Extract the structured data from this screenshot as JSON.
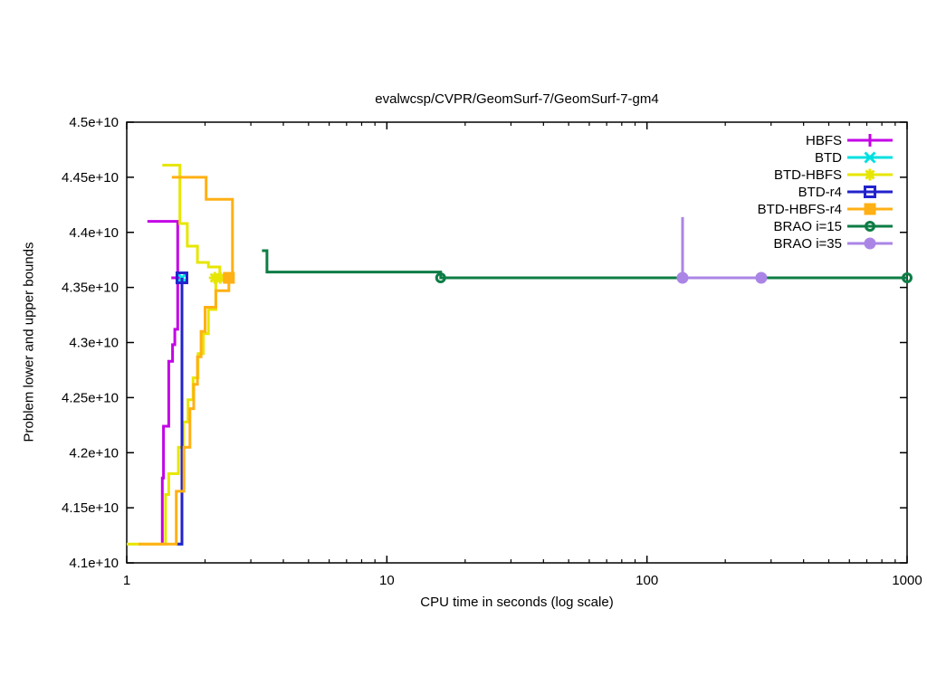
{
  "chart": {
    "title": "evalwcsp/CVPR/GeomSurf-7/GeomSurf-7-gm4",
    "xlabel": "CPU time in seconds (log scale)",
    "ylabel": "Problem lower and upper bounds"
  },
  "chart_data": {
    "type": "line",
    "x_scale": "log",
    "x_range": [
      1,
      1000
    ],
    "y_range": [
      41000000000.0,
      45000000000.0
    ],
    "x_ticks": [
      1,
      10,
      100,
      1000
    ],
    "x_tick_labels": [
      "1",
      "10",
      "100",
      "1000"
    ],
    "y_ticks": [
      41000000000.0,
      41500000000.0,
      42000000000.0,
      42500000000.0,
      43000000000.0,
      43500000000.0,
      44000000000.0,
      44500000000.0,
      45000000000.0
    ],
    "y_tick_labels": [
      "4.1e+10",
      "4.15e+10",
      "4.2e+10",
      "4.25e+10",
      "4.3e+10",
      "4.35e+10",
      "4.4e+10",
      "4.45e+10",
      "4.5e+10"
    ],
    "grid": false,
    "legend_position": "top-right-inside",
    "axis_color": "#000000",
    "background": "#ffffff",
    "series": [
      {
        "name": "HBFS",
        "color": "#c303e6",
        "marker": "plus",
        "segments": [
          [
            [
              1.2,
              44100000000.0
            ],
            [
              1.57,
              44100000000.0
            ],
            [
              1.57,
              43587000000.0
            ]
          ],
          [
            [
              1.37,
              41170000000.0
            ],
            [
              1.37,
              41770000000.0
            ],
            [
              1.385,
              41770000000.0
            ],
            [
              1.385,
              42240000000.0
            ],
            [
              1.45,
              42240000000.0
            ],
            [
              1.45,
              42830000000.0
            ],
            [
              1.5,
              42830000000.0
            ],
            [
              1.5,
              42980000000.0
            ],
            [
              1.53,
              42980000000.0
            ],
            [
              1.53,
              43120000000.0
            ],
            [
              1.57,
              43120000000.0
            ],
            [
              1.57,
              43587000000.0
            ]
          ]
        ],
        "markers": [
          [
            1.57,
            43587000000.0
          ]
        ]
      },
      {
        "name": "BTD",
        "color": "#00e0e0",
        "marker": "x",
        "segments": [
          [
            [
              1.55,
              41170000000.0
            ],
            [
              1.63,
              41170000000.0
            ],
            [
              1.63,
              43587000000.0
            ]
          ]
        ],
        "markers": [
          [
            1.63,
            43587000000.0
          ]
        ]
      },
      {
        "name": "BTD-HBFS",
        "color": "#e6e600",
        "marker": "asterisk",
        "segments": [
          [
            [
              1.37,
              44610000000.0
            ],
            [
              1.6,
              44610000000.0
            ],
            [
              1.6,
              44080000000.0
            ],
            [
              1.71,
              44080000000.0
            ],
            [
              1.71,
              43875000000.0
            ],
            [
              1.87,
              43875000000.0
            ],
            [
              1.87,
              43727000000.0
            ],
            [
              2.06,
              43727000000.0
            ],
            [
              2.06,
              43686000000.0
            ],
            [
              2.28,
              43686000000.0
            ],
            [
              2.28,
              43587000000.0
            ]
          ],
          [
            [
              1.0,
              41170000000.0
            ],
            [
              1.41,
              41170000000.0
            ],
            [
              1.41,
              41620000000.0
            ],
            [
              1.45,
              41620000000.0
            ],
            [
              1.45,
              41810000000.0
            ],
            [
              1.58,
              41810000000.0
            ],
            [
              1.58,
              42050000000.0
            ],
            [
              1.65,
              42050000000.0
            ],
            [
              1.65,
              42280000000.0
            ],
            [
              1.72,
              42280000000.0
            ],
            [
              1.72,
              42480000000.0
            ],
            [
              1.8,
              42480000000.0
            ],
            [
              1.8,
              42680000000.0
            ],
            [
              1.88,
              42680000000.0
            ],
            [
              1.88,
              42900000000.0
            ],
            [
              1.97,
              42900000000.0
            ],
            [
              1.97,
              43080000000.0
            ],
            [
              2.06,
              43080000000.0
            ],
            [
              2.06,
              43300000000.0
            ],
            [
              2.2,
              43300000000.0
            ],
            [
              2.2,
              43587000000.0
            ]
          ]
        ],
        "markers": [
          [
            2.18,
            43587000000.0
          ],
          [
            2.29,
            43587000000.0
          ]
        ]
      },
      {
        "name": "BTD-r4",
        "color": "#2222cc",
        "marker": "square-open",
        "segments": [
          [
            [
              1.55,
              41170000000.0
            ],
            [
              1.63,
              41170000000.0
            ],
            [
              1.63,
              43587000000.0
            ]
          ]
        ],
        "markers": [
          [
            1.63,
            43587000000.0
          ]
        ]
      },
      {
        "name": "BTD-HBFS-r4",
        "color": "#ffb014",
        "marker": "square",
        "segments": [
          [
            [
              1.49,
              44500000000.0
            ],
            [
              2.02,
              44500000000.0
            ],
            [
              2.02,
              44300000000.0
            ],
            [
              2.55,
              44300000000.0
            ],
            [
              2.55,
              43587000000.0
            ]
          ],
          [
            [
              1.11,
              41170000000.0
            ],
            [
              1.55,
              41170000000.0
            ],
            [
              1.55,
              41650000000.0
            ],
            [
              1.66,
              41650000000.0
            ],
            [
              1.66,
              42050000000.0
            ],
            [
              1.75,
              42050000000.0
            ],
            [
              1.75,
              42400000000.0
            ],
            [
              1.81,
              42400000000.0
            ],
            [
              1.81,
              42620000000.0
            ],
            [
              1.87,
              42620000000.0
            ],
            [
              1.87,
              42870000000.0
            ],
            [
              1.93,
              42870000000.0
            ],
            [
              1.93,
              43100000000.0
            ],
            [
              2.0,
              43100000000.0
            ],
            [
              2.0,
              43320000000.0
            ],
            [
              2.2,
              43320000000.0
            ],
            [
              2.2,
              43470000000.0
            ],
            [
              2.47,
              43470000000.0
            ],
            [
              2.47,
              43587000000.0
            ]
          ]
        ],
        "markers": [
          [
            2.47,
            43587000000.0
          ]
        ]
      },
      {
        "name": "BRAO i=15",
        "color": "#0d7d45",
        "marker": "circle-open",
        "segments": [
          [
            [
              3.31,
              43834000000.0
            ],
            [
              3.46,
              43834000000.0
            ],
            [
              3.46,
              43640000000.0
            ],
            [
              16.1,
              43640000000.0
            ],
            [
              16.1,
              43587000000.0
            ],
            [
              1000,
              43587000000.0
            ]
          ]
        ],
        "markers": [
          [
            16.1,
            43587000000.0
          ],
          [
            1000,
            43587000000.0
          ]
        ]
      },
      {
        "name": "BRAO i=35",
        "color": "#ab85e6",
        "marker": "circle",
        "segments": [
          [
            [
              137,
              44138000000.0
            ],
            [
              137,
              43587000000.0
            ],
            [
              275,
              43587000000.0
            ]
          ]
        ],
        "markers": [
          [
            137,
            43587000000.0
          ],
          [
            275,
            43587000000.0
          ]
        ]
      }
    ]
  }
}
